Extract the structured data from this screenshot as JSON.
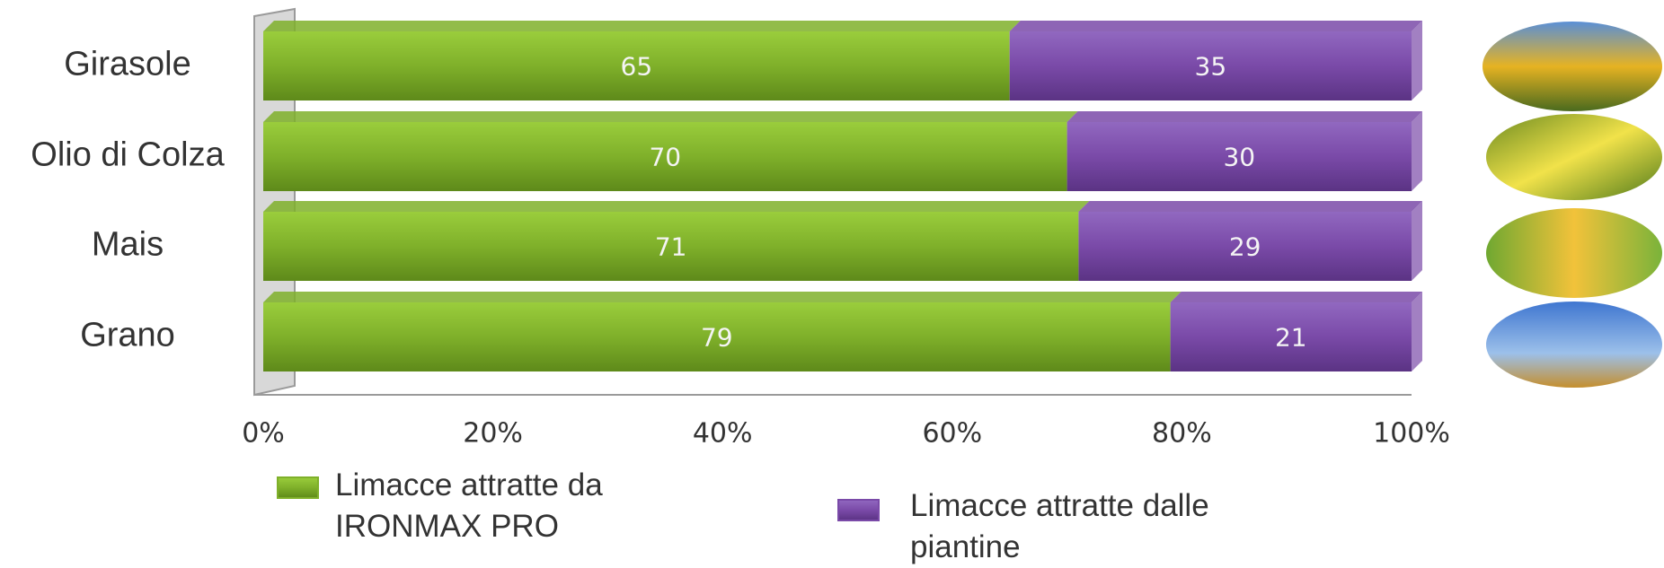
{
  "chart_data": {
    "type": "stacked-bar-horizontal",
    "categories": [
      "Girasole",
      "Olio di Colza",
      "Mais",
      "Grano"
    ],
    "series": [
      {
        "name": "Limacce attratte da IRONMAX PRO",
        "color": "#7fb02a",
        "values": [
          65,
          70,
          71,
          79
        ]
      },
      {
        "name": "Limacce attratte dalle piantine",
        "color": "#7a4aa8",
        "values": [
          35,
          30,
          29,
          21
        ]
      }
    ],
    "xlim": [
      0,
      100
    ],
    "xticks": [
      {
        "value": 0,
        "label": "0%"
      },
      {
        "value": 20,
        "label": "20%"
      },
      {
        "value": 40,
        "label": "40%"
      },
      {
        "value": 60,
        "label": "60%"
      },
      {
        "value": 80,
        "label": "80%"
      },
      {
        "value": 100,
        "label": "100%"
      }
    ]
  }
}
